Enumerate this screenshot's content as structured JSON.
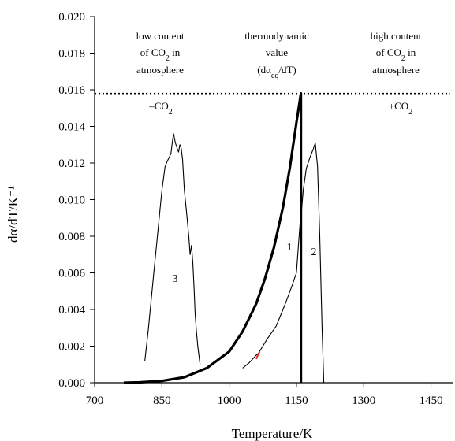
{
  "chart_data": {
    "type": "line",
    "title": "",
    "xlabel": "Temperature/K",
    "ylabel": "dα/dT/K⁻¹",
    "xlim": [
      700,
      1500
    ],
    "ylim": [
      0,
      0.02
    ],
    "x_ticks": [
      "700",
      "850",
      "1000",
      "1150",
      "1300",
      "1450"
    ],
    "x_tick_values": [
      700,
      850,
      1000,
      1150,
      1300,
      1450
    ],
    "y_ticks": [
      "0.000",
      "0.002",
      "0.004",
      "0.006",
      "0.008",
      "0.010",
      "0.012",
      "0.014",
      "0.016",
      "0.018",
      "0.020"
    ],
    "y_tick_values": [
      0,
      0.002,
      0.004,
      0.006,
      0.008,
      0.01,
      0.012,
      0.014,
      0.016,
      0.018,
      0.02
    ],
    "grid": false,
    "legend": "none",
    "series": [
      {
        "name": "thermodynamic value",
        "style": "bold",
        "color": "#000000",
        "x": [
          765,
          800,
          850,
          900,
          950,
          1000,
          1030,
          1060,
          1080,
          1100,
          1120,
          1135,
          1150,
          1160,
          1160
        ],
        "y": [
          0.0,
          2e-05,
          0.0001,
          0.0003,
          0.0008,
          0.0017,
          0.0028,
          0.0043,
          0.0057,
          0.0074,
          0.0096,
          0.0117,
          0.0142,
          0.0158,
          0.0
        ]
      },
      {
        "name": "1",
        "style": "thin",
        "color": "#000000",
        "x": [
          1030,
          1045,
          1060,
          1065,
          1085,
          1105,
          1125,
          1140,
          1150,
          1156,
          1162
        ],
        "y": [
          0.0008,
          0.0011,
          0.0015,
          0.0016,
          0.0024,
          0.0031,
          0.0043,
          0.0053,
          0.006,
          0.008,
          0.01
        ]
      },
      {
        "name": "2",
        "style": "thin",
        "color": "#000000",
        "x": [
          1160,
          1165,
          1172,
          1180,
          1188,
          1192,
          1197,
          1202,
          1207,
          1211
        ],
        "y": [
          0.009,
          0.0105,
          0.0117,
          0.0123,
          0.0128,
          0.0131,
          0.0118,
          0.008,
          0.003,
          0.0
        ]
      },
      {
        "name": "3",
        "style": "thin",
        "color": "#000000",
        "x": [
          812,
          820,
          830,
          840,
          850,
          857,
          862,
          866,
          870,
          874,
          876,
          880,
          884,
          887,
          890,
          893,
          896,
          900,
          905,
          910,
          913,
          916,
          919,
          922,
          924,
          927,
          930,
          935
        ],
        "y": [
          0.0012,
          0.003,
          0.0055,
          0.008,
          0.0105,
          0.0118,
          0.0121,
          0.0123,
          0.0125,
          0.0133,
          0.0136,
          0.0131,
          0.0128,
          0.0126,
          0.013,
          0.0128,
          0.0122,
          0.0105,
          0.0093,
          0.008,
          0.007,
          0.0075,
          0.0065,
          0.005,
          0.0038,
          0.0028,
          0.002,
          0.001
        ]
      }
    ],
    "red_segment": {
      "color": "#e0291c",
      "x": [
        1060,
        1068
      ],
      "y": [
        0.0013,
        0.0017
      ]
    },
    "reference_line": {
      "style": "dotted",
      "y": 0.0158,
      "x": [
        700,
        1492
      ]
    },
    "annotations": {
      "low": {
        "line1": "low content",
        "line2_pre": "of CO",
        "line2_sub": "2",
        "line2_post": " in",
        "line3": "atmosphere"
      },
      "thermo": {
        "line1": "thermodynamic",
        "line2": "value",
        "line3_pre": "(dα",
        "line3_sub": "eq",
        "line3_post": "/dT)"
      },
      "high": {
        "line1": "high content",
        "line2_pre": "of CO",
        "line2_sub": "2",
        "line2_post": " in",
        "line3": "atmosphere"
      },
      "minus_co2": {
        "pre": "–CO",
        "sub": "2"
      },
      "plus_co2": {
        "pre": "+CO",
        "sub": "2"
      }
    }
  }
}
